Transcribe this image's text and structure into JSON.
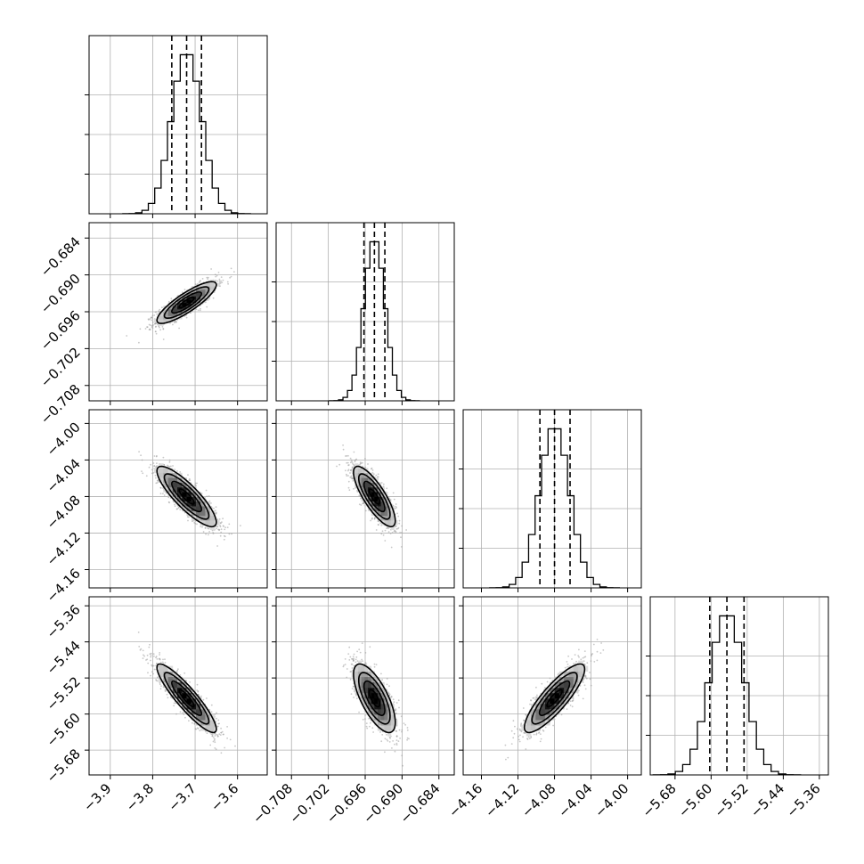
{
  "chart_data": {
    "type": "corner",
    "parameters": [
      {
        "index": 0,
        "median": -3.72,
        "q16": -3.755,
        "q84": -3.685,
        "sigma": 0.035,
        "range": [
          -3.95,
          -3.53
        ],
        "ticks": [
          -3.9,
          -3.8,
          -3.7,
          -3.6
        ],
        "tick_labels": [
          "−3.9",
          "−3.8",
          "−3.7",
          "−3.6"
        ]
      },
      {
        "index": 1,
        "median": -0.6945,
        "q16": -0.6962,
        "q84": -0.6928,
        "sigma": 0.0017,
        "range": [
          -0.7105,
          -0.6815
        ],
        "ticks": [
          -0.708,
          -0.702,
          -0.696,
          -0.69,
          -0.684
        ],
        "tick_labels": [
          "−0.708",
          "−0.702",
          "−0.696",
          "−0.690",
          "−0.684"
        ]
      },
      {
        "index": 2,
        "median": -4.08,
        "q16": -4.096,
        "q84": -4.063,
        "sigma": 0.0165,
        "range": [
          -4.18,
          -3.985
        ],
        "ticks": [
          -4.16,
          -4.12,
          -4.08,
          -4.04,
          -4.0
        ],
        "tick_labels": [
          "−4.16",
          "−4.12",
          "−4.08",
          "−4.04",
          "−4.00"
        ]
      },
      {
        "index": 3,
        "median": -5.565,
        "q16": -5.603,
        "q84": -5.527,
        "sigma": 0.038,
        "range": [
          -5.735,
          -5.34
        ],
        "ticks": [
          -5.68,
          -5.6,
          -5.52,
          -5.44,
          -5.36
        ],
        "tick_labels": [
          "−5.68",
          "−5.60",
          "−5.52",
          "−5.44",
          "−5.36"
        ]
      }
    ],
    "correlations": {
      "1,0": 0.85,
      "2,0": -0.85,
      "2,1": -0.8,
      "3,0": -0.9,
      "3,1": -0.7,
      "3,2": 0.85
    },
    "diagonal": "1D histograms with dashed lines at 16th, 50th and 84th percentiles",
    "off_diagonal": "2D histograms with contour levels and scatter of outlying samples",
    "grid": true,
    "colors": {
      "ink": "#000000",
      "grid": "#b0b0b0",
      "scatter": "#9a9a9a"
    }
  }
}
